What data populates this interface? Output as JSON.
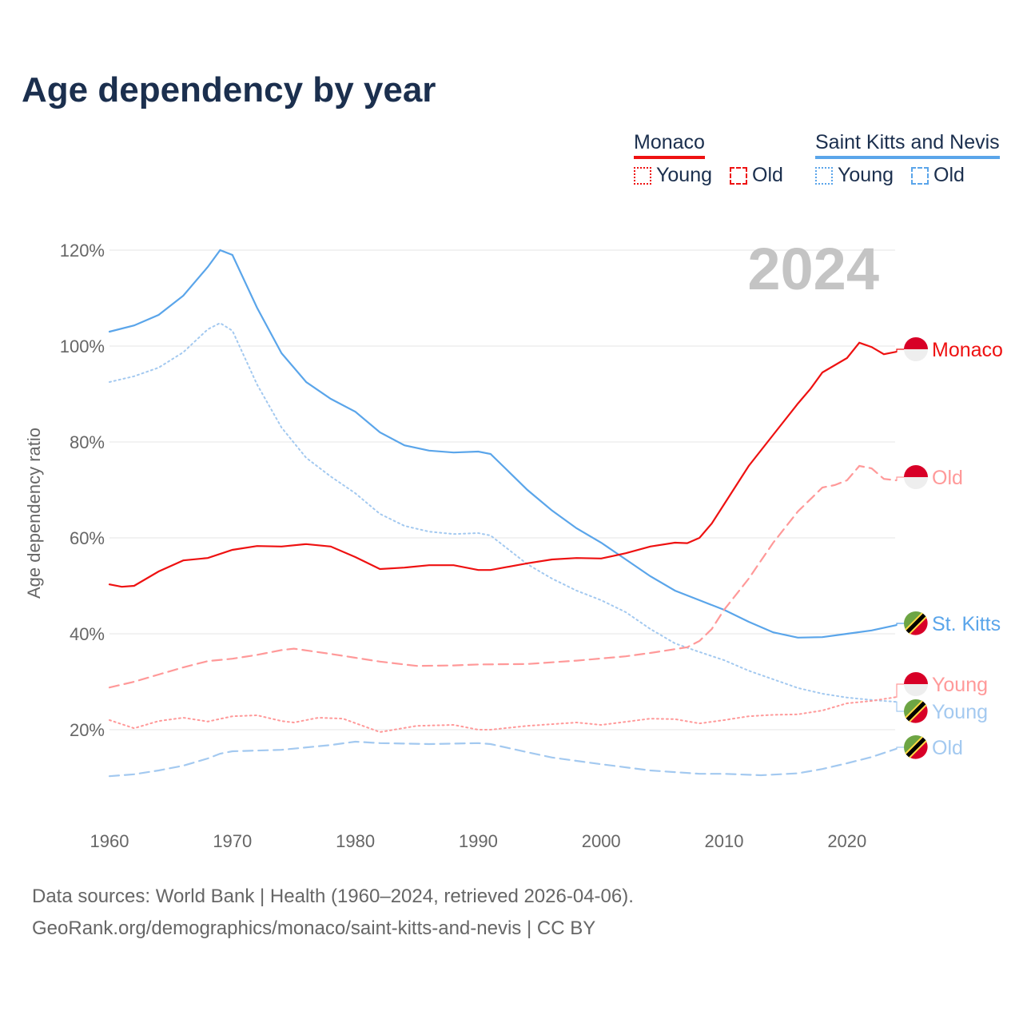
{
  "title": "Age dependency by year",
  "legend": {
    "groups": [
      {
        "name": "Monaco",
        "color": "#ee1111",
        "items": [
          {
            "label": "Young",
            "style": "dotted"
          },
          {
            "label": "Old",
            "style": "dashed"
          }
        ]
      },
      {
        "name": "Saint Kitts and Nevis",
        "color": "#5aa5ea",
        "items": [
          {
            "label": "Young",
            "style": "dotted"
          },
          {
            "label": "Old",
            "style": "dashed"
          }
        ]
      }
    ]
  },
  "footer": {
    "line1": "Data sources: World Bank | Health (1960–2024, retrieved 2026-04-06).",
    "line2": "GeoRank.org/demographics/monaco/saint-kitts-and-nevis | CC BY"
  },
  "chart_data": {
    "type": "line",
    "title": "Age dependency by year",
    "year_label": "2024",
    "xlabel": "",
    "ylabel": "Age dependency ratio",
    "xlim": [
      1960,
      2024
    ],
    "ylim": [
      0,
      125
    ],
    "xticks": [
      "1960",
      "1970",
      "1980",
      "1990",
      "2000",
      "2010",
      "2020"
    ],
    "yticks": [
      "20%",
      "40%",
      "60%",
      "80%",
      "100%",
      "120%"
    ],
    "grid": true,
    "series": [
      {
        "name": "St. Kitts",
        "country": "Saint Kitts and Nevis",
        "kind": "total",
        "color": "#5aa5ea",
        "style": "solid",
        "points": [
          [
            1960,
            103
          ],
          [
            1962,
            104.3
          ],
          [
            1964,
            106.5
          ],
          [
            1966,
            110.5
          ],
          [
            1968,
            116.5
          ],
          [
            1969,
            120
          ],
          [
            1970,
            119
          ],
          [
            1972,
            108
          ],
          [
            1974,
            98.5
          ],
          [
            1976,
            92.5
          ],
          [
            1978,
            89
          ],
          [
            1980,
            86.3
          ],
          [
            1982,
            82
          ],
          [
            1984,
            79.3
          ],
          [
            1986,
            78.2
          ],
          [
            1988,
            77.8
          ],
          [
            1990,
            78
          ],
          [
            1991,
            77.5
          ],
          [
            1992,
            75
          ],
          [
            1994,
            70
          ],
          [
            1996,
            65.7
          ],
          [
            1998,
            62
          ],
          [
            2000,
            59
          ],
          [
            2002,
            55.5
          ],
          [
            2004,
            52
          ],
          [
            2006,
            49
          ],
          [
            2008,
            47
          ],
          [
            2010,
            45
          ],
          [
            2012,
            42.5
          ],
          [
            2014,
            40.3
          ],
          [
            2016,
            39.2
          ],
          [
            2018,
            39.3
          ],
          [
            2020,
            40
          ],
          [
            2022,
            40.7
          ],
          [
            2024,
            41.8
          ]
        ]
      },
      {
        "name": "Young",
        "country": "Saint Kitts and Nevis",
        "kind": "young",
        "color": "#a3c9f0",
        "style": "dotted",
        "points": [
          [
            1960,
            92.5
          ],
          [
            1962,
            93.7
          ],
          [
            1964,
            95.5
          ],
          [
            1966,
            98.7
          ],
          [
            1968,
            103.5
          ],
          [
            1969,
            104.8
          ],
          [
            1970,
            103.2
          ],
          [
            1972,
            92
          ],
          [
            1974,
            83
          ],
          [
            1976,
            76.7
          ],
          [
            1978,
            72.8
          ],
          [
            1980,
            69.3
          ],
          [
            1982,
            65
          ],
          [
            1984,
            62.5
          ],
          [
            1986,
            61.3
          ],
          [
            1988,
            60.8
          ],
          [
            1990,
            61
          ],
          [
            1991,
            60.5
          ],
          [
            1992,
            58.5
          ],
          [
            1994,
            54.5
          ],
          [
            1996,
            51.5
          ],
          [
            1998,
            49
          ],
          [
            2000,
            47
          ],
          [
            2002,
            44.5
          ],
          [
            2004,
            41
          ],
          [
            2006,
            38
          ],
          [
            2008,
            36.2
          ],
          [
            2010,
            34.5
          ],
          [
            2012,
            32.3
          ],
          [
            2014,
            30.5
          ],
          [
            2016,
            28.7
          ],
          [
            2018,
            27.5
          ],
          [
            2020,
            26.7
          ],
          [
            2022,
            26.2
          ],
          [
            2024,
            25.8
          ]
        ]
      },
      {
        "name": "Old",
        "country": "Saint Kitts and Nevis",
        "kind": "old",
        "color": "#a3c9f0",
        "style": "dashed",
        "points": [
          [
            1960,
            10.3
          ],
          [
            1962,
            10.7
          ],
          [
            1964,
            11.5
          ],
          [
            1966,
            12.5
          ],
          [
            1968,
            14
          ],
          [
            1969,
            15
          ],
          [
            1970,
            15.5
          ],
          [
            1974,
            15.8
          ],
          [
            1978,
            16.8
          ],
          [
            1980,
            17.5
          ],
          [
            1982,
            17.2
          ],
          [
            1986,
            17
          ],
          [
            1990,
            17.2
          ],
          [
            1991,
            17
          ],
          [
            1994,
            15.3
          ],
          [
            1996,
            14.2
          ],
          [
            2000,
            12.8
          ],
          [
            2004,
            11.5
          ],
          [
            2008,
            10.8
          ],
          [
            2010,
            10.8
          ],
          [
            2013,
            10.5
          ],
          [
            2016,
            10.9
          ],
          [
            2018,
            11.8
          ],
          [
            2020,
            13
          ],
          [
            2022,
            14.3
          ],
          [
            2024,
            16
          ]
        ]
      },
      {
        "name": "Monaco",
        "country": "Monaco",
        "kind": "total",
        "color": "#ee1111",
        "style": "solid",
        "points": [
          [
            1960,
            50.3
          ],
          [
            1961,
            49.8
          ],
          [
            1962,
            50
          ],
          [
            1964,
            53
          ],
          [
            1966,
            55.3
          ],
          [
            1968,
            55.8
          ],
          [
            1970,
            57.5
          ],
          [
            1972,
            58.3
          ],
          [
            1974,
            58.2
          ],
          [
            1976,
            58.7
          ],
          [
            1978,
            58.2
          ],
          [
            1980,
            56
          ],
          [
            1982,
            53.5
          ],
          [
            1984,
            53.8
          ],
          [
            1986,
            54.3
          ],
          [
            1988,
            54.3
          ],
          [
            1990,
            53.3
          ],
          [
            1991,
            53.3
          ],
          [
            1994,
            54.7
          ],
          [
            1996,
            55.5
          ],
          [
            1998,
            55.8
          ],
          [
            2000,
            55.7
          ],
          [
            2002,
            56.8
          ],
          [
            2004,
            58.2
          ],
          [
            2006,
            59
          ],
          [
            2007,
            58.9
          ],
          [
            2008,
            60
          ],
          [
            2009,
            63
          ],
          [
            2010,
            67
          ],
          [
            2012,
            75
          ],
          [
            2014,
            81.5
          ],
          [
            2016,
            88
          ],
          [
            2017,
            91
          ],
          [
            2018,
            94.5
          ],
          [
            2020,
            97.5
          ],
          [
            2021,
            100.7
          ],
          [
            2022,
            99.8
          ],
          [
            2023,
            98.3
          ],
          [
            2024,
            98.8
          ]
        ]
      },
      {
        "name": "Old",
        "country": "Monaco",
        "kind": "old",
        "color": "#ff9999",
        "style": "dashed",
        "points": [
          [
            1960,
            28.8
          ],
          [
            1962,
            30
          ],
          [
            1964,
            31.5
          ],
          [
            1966,
            33
          ],
          [
            1968,
            34.3
          ],
          [
            1970,
            34.8
          ],
          [
            1972,
            35.6
          ],
          [
            1974,
            36.6
          ],
          [
            1975,
            36.9
          ],
          [
            1978,
            35.8
          ],
          [
            1980,
            35
          ],
          [
            1982,
            34.2
          ],
          [
            1985,
            33.3
          ],
          [
            1988,
            33.4
          ],
          [
            1990,
            33.6
          ],
          [
            1994,
            33.7
          ],
          [
            1998,
            34.4
          ],
          [
            2002,
            35.3
          ],
          [
            2004,
            36
          ],
          [
            2007,
            37.2
          ],
          [
            2008,
            38.5
          ],
          [
            2009,
            41
          ],
          [
            2010,
            45
          ],
          [
            2012,
            51.5
          ],
          [
            2014,
            59
          ],
          [
            2016,
            65.5
          ],
          [
            2018,
            70.5
          ],
          [
            2019,
            71
          ],
          [
            2020,
            72
          ],
          [
            2021,
            75
          ],
          [
            2022,
            74.5
          ],
          [
            2023,
            72.3
          ],
          [
            2024,
            72
          ]
        ]
      },
      {
        "name": "Young",
        "country": "Monaco",
        "kind": "young",
        "color": "#ff9999",
        "style": "dotted",
        "points": [
          [
            1960,
            22
          ],
          [
            1962,
            20.3
          ],
          [
            1964,
            21.8
          ],
          [
            1966,
            22.5
          ],
          [
            1968,
            21.7
          ],
          [
            1970,
            22.8
          ],
          [
            1972,
            23
          ],
          [
            1974,
            21.8
          ],
          [
            1975,
            21.5
          ],
          [
            1977,
            22.5
          ],
          [
            1979,
            22.3
          ],
          [
            1982,
            19.5
          ],
          [
            1985,
            20.8
          ],
          [
            1988,
            21
          ],
          [
            1990,
            20
          ],
          [
            1991,
            20
          ],
          [
            1994,
            20.8
          ],
          [
            1998,
            21.5
          ],
          [
            2000,
            21
          ],
          [
            2004,
            22.3
          ],
          [
            2006,
            22.2
          ],
          [
            2008,
            21.3
          ],
          [
            2010,
            22
          ],
          [
            2012,
            22.8
          ],
          [
            2014,
            23.1
          ],
          [
            2016,
            23.2
          ],
          [
            2018,
            24
          ],
          [
            2020,
            25.5
          ],
          [
            2022,
            26
          ],
          [
            2024,
            26.8
          ]
        ]
      }
    ]
  }
}
